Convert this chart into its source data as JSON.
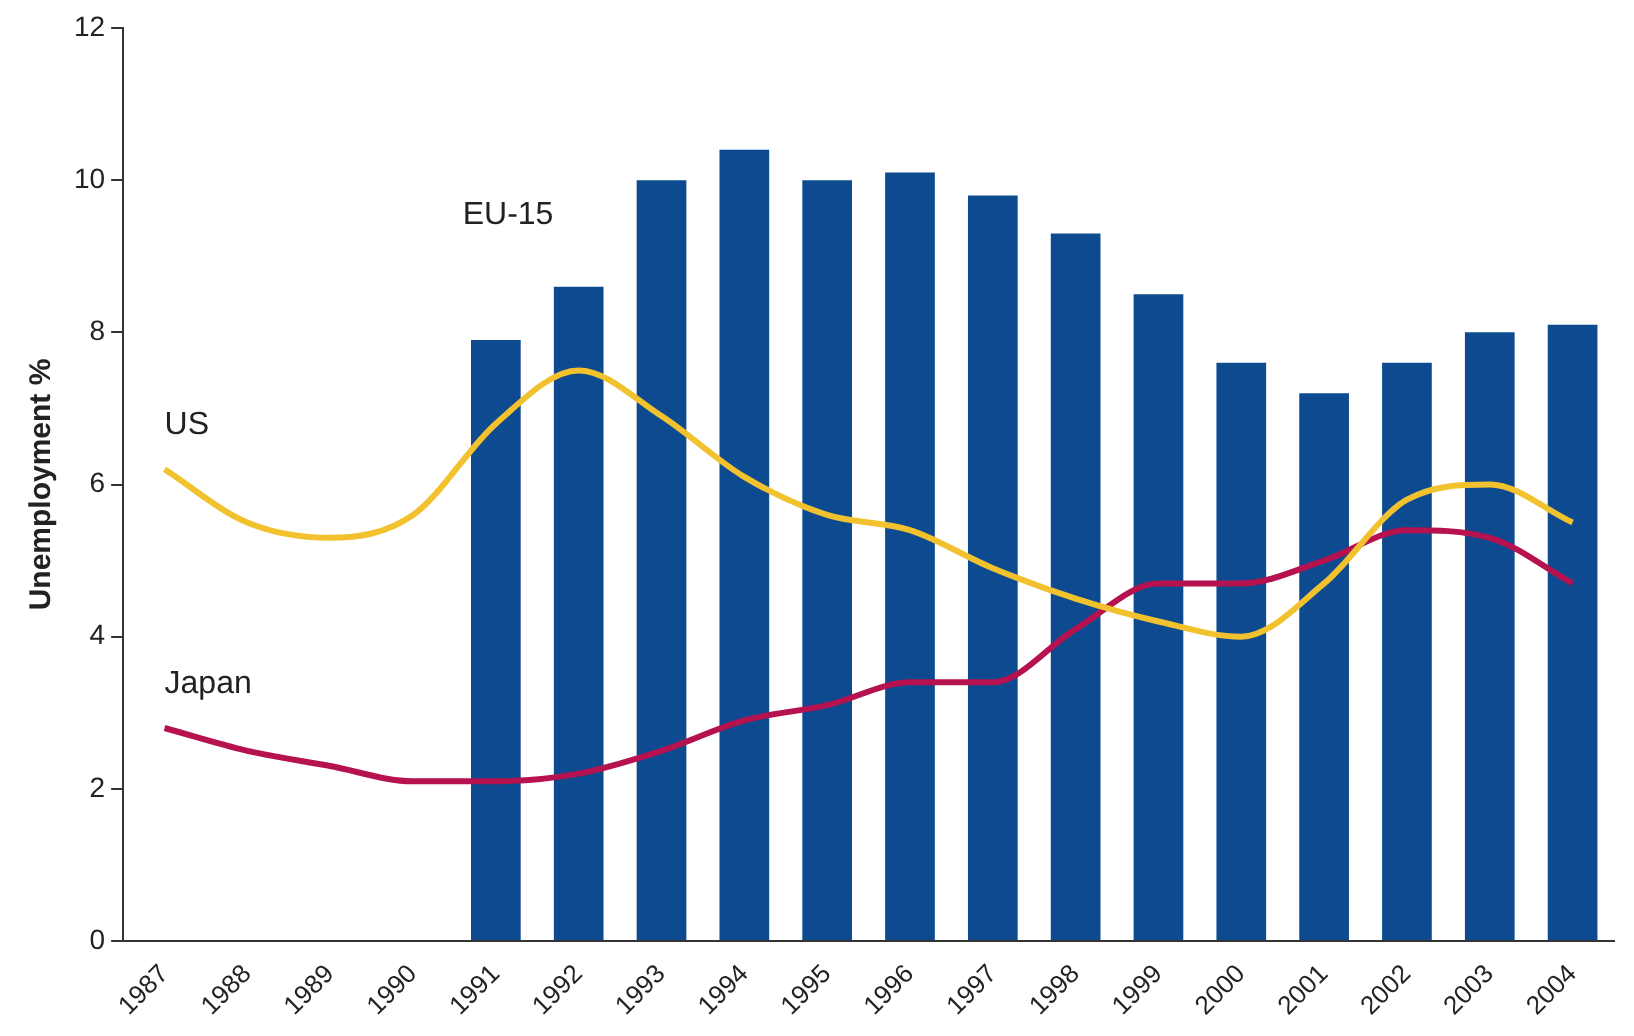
{
  "chart_data": {
    "type": "bar",
    "ylabel": "Unemployment %",
    "categories": [
      "1987",
      "1988",
      "1989",
      "1990",
      "1991",
      "1992",
      "1993",
      "1994",
      "1995",
      "1996",
      "1997",
      "1998",
      "1999",
      "2000",
      "2001",
      "2002",
      "2003",
      "2004"
    ],
    "series": [
      {
        "name": "EU-15",
        "color": "#0d4a8f",
        "values": [
          null,
          null,
          null,
          null,
          7.9,
          8.6,
          10.0,
          10.4,
          10.0,
          10.1,
          9.8,
          9.3,
          8.5,
          7.6,
          7.2,
          7.6,
          8.0,
          8.1
        ]
      },
      {
        "name": "US",
        "type": "line",
        "color": "#f2c12e",
        "values": [
          6.2,
          5.5,
          5.3,
          5.6,
          6.8,
          7.5,
          6.9,
          6.1,
          5.6,
          5.4,
          4.9,
          4.5,
          4.2,
          4.0,
          4.7,
          5.8,
          6.0,
          5.5
        ]
      },
      {
        "name": "Japan",
        "type": "line",
        "color": "#b5124f",
        "values": [
          2.8,
          2.5,
          2.3,
          2.1,
          2.1,
          2.2,
          2.5,
          2.9,
          3.1,
          3.4,
          3.4,
          4.1,
          4.7,
          4.7,
          5.0,
          5.4,
          5.3,
          4.7
        ]
      }
    ],
    "ylim": [
      0,
      12
    ],
    "yticks": [
      0,
      2,
      4,
      6,
      8,
      10,
      12
    ],
    "grid": false,
    "legend": false,
    "marker": "none",
    "line_style": "solid"
  }
}
